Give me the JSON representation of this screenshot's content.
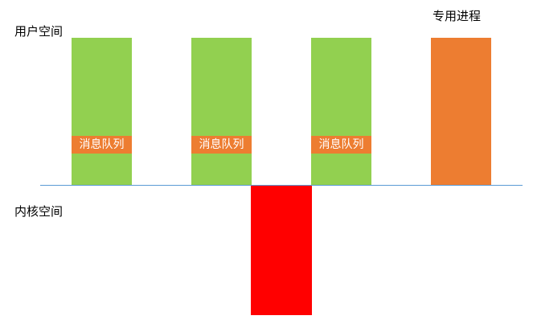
{
  "labels": {
    "user_space": "用户空间",
    "kernel_space": "内核空间",
    "dedicated_process": "专用进程",
    "message_queue": "消息队列"
  },
  "colors": {
    "user_process": "#92d050",
    "queue_tag_bg": "#ed7d31",
    "queue_tag_text": "#ffffff",
    "dedicated_process": "#ed7d31",
    "kernel_block": "#ff0000",
    "boundary_line": "#5b9bd5"
  }
}
